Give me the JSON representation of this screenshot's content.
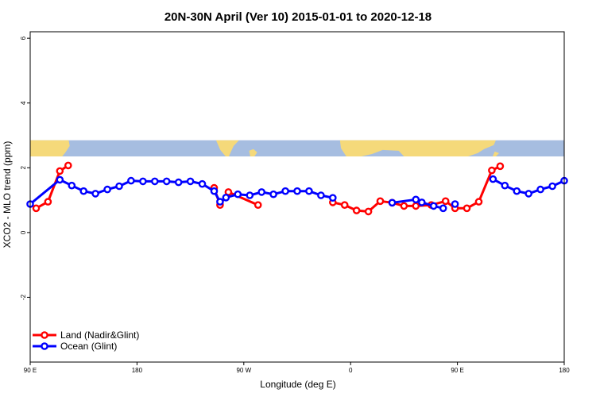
{
  "chart_data": {
    "type": "line",
    "title": "20N-30N April (Ver 10)   2015-01-01 to 2020-12-18",
    "xlabel": "Longitude (deg E)",
    "ylabel": "XCO2 - MLO trend (ppm)",
    "xlim": [
      90,
      540
    ],
    "ylim": [
      -4,
      6.2
    ],
    "x_ticks": [
      {
        "value": 90,
        "label": "90 E"
      },
      {
        "value": 180,
        "label": "180"
      },
      {
        "value": 270,
        "label": "90 W"
      },
      {
        "value": 360,
        "label": "0"
      },
      {
        "value": 450,
        "label": "90 E"
      },
      {
        "value": 540,
        "label": "180"
      }
    ],
    "y_ticks": [
      {
        "value": -2,
        "label": "-2"
      },
      {
        "value": 0,
        "label": "0"
      },
      {
        "value": 2,
        "label": "2"
      },
      {
        "value": 4,
        "label": "4"
      },
      {
        "value": 6,
        "label": "6"
      }
    ],
    "map_band": {
      "y_from": 2.35,
      "y_to": 2.85,
      "ocean_color": "#a6bde0",
      "land_color": "#f5d97a"
    },
    "legend_position": "bottom-left",
    "series": [
      {
        "name": "Land (Nadir&Glint)",
        "color": "#ff0000",
        "segments": [
          [
            [
              95,
              0.75
            ],
            [
              105,
              0.95
            ],
            [
              115,
              1.9
            ],
            [
              122,
              2.07
            ]
          ],
          [
            [
              245,
              1.38
            ],
            [
              250,
              0.85
            ],
            [
              257,
              1.25
            ],
            [
              282,
              0.85
            ]
          ],
          [
            [
              345,
              0.93
            ],
            [
              355,
              0.85
            ],
            [
              365,
              0.68
            ],
            [
              375,
              0.65
            ],
            [
              385,
              0.97
            ],
            [
              395,
              0.92
            ],
            [
              405,
              0.82
            ],
            [
              415,
              0.82
            ],
            [
              428,
              0.85
            ],
            [
              440,
              0.97
            ],
            [
              448,
              0.75
            ],
            [
              458,
              0.75
            ],
            [
              468,
              0.95
            ],
            [
              479,
              1.92
            ],
            [
              486,
              2.05
            ]
          ]
        ]
      },
      {
        "name": "Ocean (Glint)",
        "color": "#0000ff",
        "segments": [
          [
            [
              90,
              0.88
            ],
            [
              115,
              1.63
            ],
            [
              125,
              1.45
            ],
            [
              135,
              1.28
            ],
            [
              145,
              1.2
            ],
            [
              155,
              1.33
            ],
            [
              165,
              1.43
            ],
            [
              175,
              1.6
            ],
            [
              185,
              1.58
            ],
            [
              195,
              1.58
            ],
            [
              205,
              1.58
            ],
            [
              215,
              1.55
            ],
            [
              225,
              1.58
            ],
            [
              235,
              1.5
            ],
            [
              245,
              1.28
            ],
            [
              250,
              0.95
            ],
            [
              255,
              1.08
            ],
            [
              265,
              1.18
            ],
            [
              275,
              1.15
            ],
            [
              285,
              1.25
            ],
            [
              295,
              1.18
            ],
            [
              305,
              1.28
            ],
            [
              315,
              1.28
            ],
            [
              325,
              1.28
            ],
            [
              335,
              1.15
            ],
            [
              345,
              1.07
            ]
          ],
          [
            [
              395,
              0.92
            ],
            [
              415,
              1.02
            ],
            [
              420,
              0.93
            ],
            [
              430,
              0.82
            ],
            [
              438,
              0.75
            ]
          ],
          [
            [
              448,
              0.88
            ]
          ],
          [
            [
              480,
              1.65
            ],
            [
              490,
              1.45
            ],
            [
              500,
              1.28
            ],
            [
              510,
              1.2
            ],
            [
              520,
              1.33
            ],
            [
              530,
              1.43
            ],
            [
              540,
              1.6
            ]
          ]
        ]
      }
    ]
  }
}
